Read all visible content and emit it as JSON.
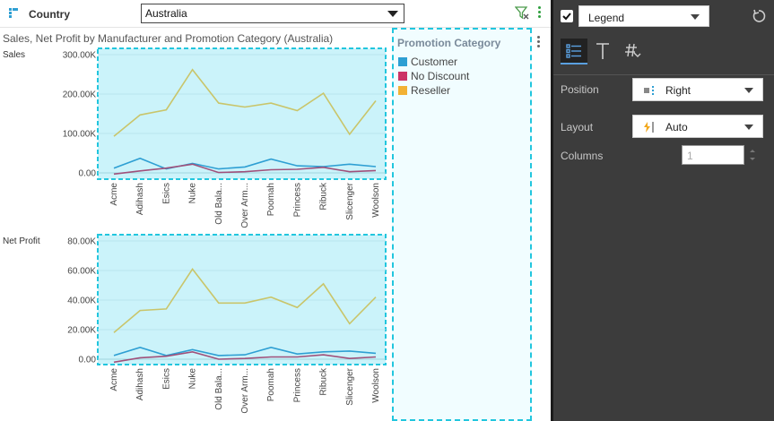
{
  "filter": {
    "label": "Country",
    "selected": "Australia"
  },
  "chart": {
    "title": "Sales, Net Profit by Manufacturer and Promotion Category (Australia)",
    "legend_title": "Promotion Category",
    "legend": [
      {
        "name": "Customer",
        "color": "#2e9fd3"
      },
      {
        "name": "No Discount",
        "color": "#cc3366"
      },
      {
        "name": "Reseller",
        "color": "#f2b134"
      }
    ]
  },
  "chart_data": [
    {
      "type": "line",
      "title": "",
      "ylabel": "Sales",
      "categories": [
        "Acme",
        "Adihash",
        "Esics",
        "Nuke",
        "Old Bala...",
        "Over Arm...",
        "Poomah",
        "Princess",
        "Ribuck",
        "Slicenger",
        "Woolson"
      ],
      "ylim": [
        0,
        300000
      ],
      "yticks": [
        "0.00",
        "100.00K",
        "200.00K",
        "300.00K"
      ],
      "ytick_values": [
        0,
        100000,
        200000,
        300000
      ],
      "series": [
        {
          "name": "Customer",
          "values": [
            12000,
            37000,
            10000,
            24000,
            10000,
            15000,
            35000,
            18000,
            16000,
            22000,
            16000
          ]
        },
        {
          "name": "No Discount",
          "values": [
            -3000,
            5000,
            12000,
            22000,
            1000,
            3000,
            8000,
            9000,
            14000,
            3000,
            6000
          ]
        },
        {
          "name": "Reseller",
          "values": [
            93000,
            147000,
            160000,
            262000,
            177000,
            167000,
            177000,
            158000,
            202000,
            98000,
            183000
          ]
        }
      ]
    },
    {
      "type": "line",
      "title": "",
      "ylabel": "Net Profit",
      "categories": [
        "Acme",
        "Adihash",
        "Esics",
        "Nuke",
        "Old Bala...",
        "Over Arm...",
        "Poomah",
        "Princess",
        "Ribuck",
        "Slicenger",
        "Woolson"
      ],
      "ylim": [
        0,
        80000
      ],
      "yticks": [
        "0.00",
        "20.00K",
        "40.00K",
        "60.00K",
        "80.00K"
      ],
      "ytick_values": [
        0,
        20000,
        40000,
        60000,
        80000
      ],
      "series": [
        {
          "name": "Customer",
          "values": [
            2500,
            8000,
            2500,
            6500,
            2500,
            3000,
            8000,
            3500,
            5000,
            5500,
            4000
          ]
        },
        {
          "name": "No Discount",
          "values": [
            -2000,
            1000,
            2000,
            5000,
            0,
            500,
            1500,
            1500,
            3000,
            500,
            1500
          ]
        },
        {
          "name": "Reseller",
          "values": [
            18000,
            33000,
            34000,
            61000,
            38000,
            38000,
            42000,
            35000,
            51000,
            24000,
            42000
          ]
        }
      ]
    }
  ],
  "panel": {
    "section": "Legend",
    "position_label": "Position",
    "position_value": "Right",
    "layout_label": "Layout",
    "layout_value": "Auto",
    "columns_label": "Columns",
    "columns_value": "1",
    "tabs": [
      {
        "name": "legend-tab",
        "icon": "list-icon"
      },
      {
        "name": "text-tab",
        "icon": "text-icon"
      },
      {
        "name": "number-format-tab",
        "icon": "hash-icon"
      }
    ]
  }
}
